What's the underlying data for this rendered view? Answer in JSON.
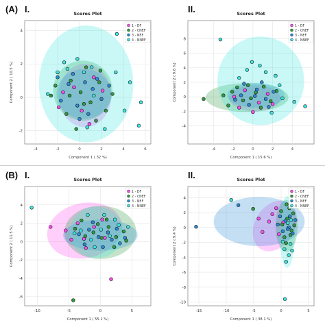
{
  "figure": {
    "section_a": "(A)",
    "section_b": "(B)",
    "panel_i": "I.",
    "panel_ii": "II."
  },
  "chart_data": [
    {
      "id": "A-I",
      "type": "scatter",
      "title": "Scores Plot",
      "xlabel": "Component 1 ( 32 %)",
      "ylabel": "Component 2 ( 10.5 %)",
      "xlim": [
        -5,
        6.5
      ],
      "ylim": [
        -2.8,
        4.6
      ],
      "xticks": [
        -4,
        -2,
        0,
        2,
        4,
        6
      ],
      "yticks": [
        -2,
        0,
        2,
        4
      ],
      "xtick_labels": [
        "-4",
        "-2",
        "0",
        "2",
        "4",
        "6"
      ],
      "ytick_labels": [
        "-2",
        "0",
        "2",
        "4"
      ],
      "legend": {
        "position": "top-right",
        "entries": [
          "1 - DF",
          "2 - CNEF",
          "3 - NEF",
          "4 - NNEF"
        ]
      },
      "series": [
        {
          "color": "#ff4ff0",
          "ellipse": {
            "cx": 0.5,
            "cy": 0.1,
            "rx": 2.4,
            "ry": 1.9,
            "angle": 0
          },
          "points": [
            [
              -1.5,
              0.3
            ],
            [
              0.2,
              -0.8
            ],
            [
              1.3,
              1.2
            ],
            [
              -0.5,
              0.6
            ],
            [
              0.9,
              -1.6
            ],
            [
              2.1,
              0.4
            ],
            [
              -1.9,
              -0.6
            ]
          ]
        },
        {
          "color": "#2f9c3f",
          "ellipse": {
            "cx": 0.3,
            "cy": 0.4,
            "rx": 2.7,
            "ry": 1.8,
            "angle": 0
          },
          "points": [
            [
              -2.2,
              0.7
            ],
            [
              -0.8,
              1.0
            ],
            [
              0.1,
              0.3
            ],
            [
              1.0,
              -0.3
            ],
            [
              1.8,
              0.9
            ],
            [
              -1.2,
              -1.0
            ],
            [
              0.6,
              1.8
            ],
            [
              2.4,
              -0.8
            ],
            [
              -0.3,
              -1.9
            ],
            [
              1.5,
              -1.4
            ],
            [
              -2.6,
              0.1
            ],
            [
              0.4,
              -0.4
            ],
            [
              1.9,
              1.6
            ],
            [
              -0.9,
              0.1
            ],
            [
              3.0,
              0.2
            ]
          ]
        },
        {
          "color": "#2b8bd8",
          "ellipse": {
            "cx": 0.4,
            "cy": 0.2,
            "rx": 2.5,
            "ry": 1.5,
            "angle": 0
          },
          "points": [
            [
              -1.0,
              0.8
            ],
            [
              0.5,
              0.9
            ],
            [
              -0.2,
              -0.5
            ],
            [
              1.2,
              0.5
            ],
            [
              -1.7,
              -0.2
            ],
            [
              0.8,
              -1.0
            ],
            [
              2.0,
              -0.1
            ],
            [
              -0.6,
              1.4
            ],
            [
              1.6,
              1.1
            ],
            [
              -2.0,
              1.2
            ],
            [
              0.0,
              -1.3
            ],
            [
              2.7,
              0.7
            ]
          ]
        },
        {
          "color": "#3de5e0",
          "ellipse": {
            "cx": 0.6,
            "cy": 0.8,
            "rx": 4.3,
            "ry": 3.5,
            "angle": 0
          },
          "points": [
            [
              -1.1,
              1.7
            ],
            [
              0.4,
              1.5
            ],
            [
              1.1,
              1.8
            ],
            [
              -2.0,
              1.5
            ],
            [
              3.4,
              3.8
            ],
            [
              4.1,
              -0.8
            ],
            [
              -2.9,
              0.2
            ],
            [
              2.3,
              -1.9
            ],
            [
              0.7,
              -1.8
            ],
            [
              -1.4,
              2.1
            ],
            [
              3.3,
              1.5
            ],
            [
              4.6,
              0.9
            ],
            [
              5.4,
              -1.7
            ],
            [
              5.6,
              -0.3
            ],
            [
              1.3,
              0.1
            ],
            [
              -0.2,
              2.3
            ]
          ]
        }
      ]
    },
    {
      "id": "A-II",
      "type": "scatter",
      "title": "Scores Plot",
      "xlabel": "Component 1 ( 15.6 %)",
      "ylabel": "Component 2 ( 9.6 %)",
      "xlim": [
        -6.6,
        6.2
      ],
      "ylim": [
        -6.5,
        10.5
      ],
      "xticks": [
        -4,
        -2,
        0,
        2,
        4
      ],
      "yticks": [
        -4,
        -2,
        0,
        2,
        4,
        6,
        8
      ],
      "xtick_labels": [
        "-4",
        "-2",
        "0",
        "2",
        "4"
      ],
      "ytick_labels": [
        "-4",
        "-2",
        "0",
        "2",
        "4",
        "6",
        "8"
      ],
      "legend": {
        "position": "top-right",
        "entries": [
          "1 - DF",
          "2 - CNEF",
          "3 - NEF",
          "4 - NNEF"
        ]
      },
      "series": [
        {
          "color": "#ff4ff0",
          "ellipse": {
            "cx": 0.2,
            "cy": -0.2,
            "rx": 2.6,
            "ry": 1.8,
            "angle": 0
          },
          "points": [
            [
              -1.4,
              -1.5
            ],
            [
              0.6,
              -0.8
            ],
            [
              1.5,
              0.4
            ],
            [
              -0.8,
              0.9
            ],
            [
              0.0,
              -2.1
            ],
            [
              2.0,
              -1.0
            ],
            [
              -1.9,
              0.0
            ]
          ]
        },
        {
          "color": "#2f9c3f",
          "ellipse": {
            "cx": -0.6,
            "cy": -0.1,
            "rx": 4.2,
            "ry": 2.0,
            "angle": 0
          },
          "points": [
            [
              -5.0,
              -0.3
            ],
            [
              -2.1,
              0.7
            ],
            [
              -1.0,
              -0.5
            ],
            [
              0.3,
              0.6
            ],
            [
              1.1,
              1.4
            ],
            [
              -0.5,
              1.6
            ],
            [
              1.8,
              -0.6
            ],
            [
              -2.5,
              -1.2
            ],
            [
              0.8,
              -1.5
            ],
            [
              -1.6,
              1.3
            ],
            [
              2.4,
              0.8
            ],
            [
              -0.2,
              -0.2
            ],
            [
              -3.0,
              0.2
            ]
          ]
        },
        {
          "color": "#2b8bd8",
          "ellipse": {
            "cx": 0.3,
            "cy": 0.2,
            "rx": 2.9,
            "ry": 1.7,
            "angle": 0
          },
          "points": [
            [
              -1.2,
              0.2
            ],
            [
              0.4,
              1.0
            ],
            [
              1.3,
              -0.3
            ],
            [
              -0.4,
              -1.1
            ],
            [
              0.9,
              2.0
            ],
            [
              2.1,
              0.7
            ],
            [
              -1.8,
              -0.4
            ],
            [
              0.2,
              0.1
            ],
            [
              1.6,
              -1.4
            ],
            [
              -0.9,
              1.8
            ]
          ]
        },
        {
          "color": "#3de5e0",
          "ellipse": {
            "cx": 0.8,
            "cy": 2.2,
            "rx": 4.4,
            "ry": 6.1,
            "angle": 0
          },
          "points": [
            [
              -3.3,
              7.9
            ],
            [
              0.7,
              4.3
            ],
            [
              1.3,
              3.4
            ],
            [
              -0.6,
              3.7
            ],
            [
              2.3,
              2.9
            ],
            [
              4.2,
              -0.7
            ],
            [
              5.3,
              -1.3
            ],
            [
              3.0,
              -0.2
            ],
            [
              1.9,
              -2.2
            ],
            [
              -0.1,
              4.8
            ],
            [
              2.7,
              1.6
            ],
            [
              -1.4,
              2.6
            ]
          ]
        }
      ]
    },
    {
      "id": "B-I",
      "type": "scatter",
      "title": "Scores Plot",
      "xlabel": "Component 1 ( 55.1 %)",
      "ylabel": "Component 2 ( 11.5 %)",
      "xlim": [
        -12,
        8
      ],
      "ylim": [
        -7,
        6
      ],
      "xticks": [
        -10,
        -5,
        0,
        5
      ],
      "yticks": [
        -6,
        -4,
        -2,
        0,
        2,
        4
      ],
      "xtick_labels": [
        "-10",
        "-5",
        "0",
        "5"
      ],
      "ytick_labels": [
        "-6",
        "-4",
        "-2",
        "0",
        "2",
        "4"
      ],
      "legend": {
        "position": "top-right",
        "entries": [
          "1 - DF",
          "2 - CNEF",
          "3 - NEF",
          "4 - NNEF"
        ]
      },
      "series": [
        {
          "color": "#ff4ff0",
          "ellipse": {
            "cx": -2.5,
            "cy": 1.2,
            "rx": 6.0,
            "ry": 3.0,
            "angle": -12
          },
          "points": [
            [
              -7.9,
              1.6
            ],
            [
              -5.5,
              1.2
            ],
            [
              -3.6,
              2.0
            ],
            [
              -2.6,
              0.3
            ],
            [
              -1.0,
              1.6
            ],
            [
              0.3,
              2.4
            ],
            [
              0.7,
              0.4
            ],
            [
              -2.3,
              -0.7
            ],
            [
              1.7,
              -4.1
            ],
            [
              -4.6,
              0.2
            ]
          ]
        },
        {
          "color": "#2f9c3f",
          "ellipse": {
            "cx": 0.0,
            "cy": 1.0,
            "rx": 5.7,
            "ry": 2.9,
            "angle": 0
          },
          "points": [
            [
              -4.0,
              1.4
            ],
            [
              -2.4,
              0.6
            ],
            [
              -1.1,
              1.0
            ],
            [
              0.2,
              0.4
            ],
            [
              1.3,
              1.6
            ],
            [
              2.5,
              0.5
            ],
            [
              3.7,
              1.1
            ],
            [
              -3.0,
              2.3
            ],
            [
              -0.4,
              1.9
            ],
            [
              1.0,
              2.4
            ],
            [
              -4.3,
              -6.4
            ],
            [
              4.1,
              0.1
            ],
            [
              2.2,
              -0.6
            ]
          ]
        },
        {
          "color": "#2b8bd8",
          "ellipse": {
            "cx": 0.0,
            "cy": 0.7,
            "rx": 5.9,
            "ry": 1.7,
            "angle": 0
          },
          "points": [
            [
              -3.4,
              0.8
            ],
            [
              -1.8,
              1.3
            ],
            [
              -0.3,
              0.5
            ],
            [
              1.2,
              1.0
            ],
            [
              2.6,
              1.4
            ],
            [
              3.9,
              0.4
            ],
            [
              -2.5,
              -0.3
            ],
            [
              0.4,
              -0.6
            ],
            [
              1.8,
              0.2
            ],
            [
              -1.2,
              2.1
            ],
            [
              3.1,
              -0.2
            ]
          ]
        },
        {
          "color": "#3de5e0",
          "ellipse": {
            "cx": -0.6,
            "cy": 1.0,
            "rx": 4.3,
            "ry": 2.8,
            "angle": 0
          },
          "points": [
            [
              -10.9,
              3.7
            ],
            [
              -3.1,
              1.2
            ],
            [
              -1.5,
              0.2
            ],
            [
              0.1,
              1.3
            ],
            [
              1.5,
              0.6
            ],
            [
              2.9,
              1.8
            ],
            [
              -2.0,
              2.9
            ],
            [
              0.6,
              2.9
            ],
            [
              -0.9,
              -0.6
            ],
            [
              2.3,
              2.4
            ],
            [
              4.4,
              1.6
            ],
            [
              -4.1,
              0.9
            ]
          ]
        }
      ]
    },
    {
      "id": "B-II",
      "type": "scatter",
      "title": "Scores Plot",
      "xlabel": "Component 1 ( 38.1 %)",
      "ylabel": "Component 2 ( 9.4 %)",
      "xlim": [
        -17,
        6
      ],
      "ylim": [
        -10.5,
        5.5
      ],
      "xticks": [
        -15,
        -10,
        -5,
        0,
        5
      ],
      "yticks": [
        -10,
        -8,
        -6,
        -4,
        -2,
        0,
        2,
        4
      ],
      "xtick_labels": [
        "-15",
        "-10",
        "-5",
        "0",
        "5"
      ],
      "ytick_labels": [
        "-10",
        "-8",
        "-6",
        "-4",
        "-2",
        "0",
        "2",
        "4"
      ],
      "legend": {
        "position": "top-right",
        "entries": [
          "1 - DF",
          "2 - CNEF",
          "3 - NEF",
          "4 - NNEF"
        ]
      },
      "series": [
        {
          "color": "#ff4ff0",
          "ellipse": {
            "cx": -1.2,
            "cy": 0.2,
            "rx": 3.6,
            "ry": 3.6,
            "angle": 30
          },
          "points": [
            [
              -3.4,
              -0.6
            ],
            [
              -1.6,
              1.8
            ],
            [
              -0.4,
              -0.9
            ],
            [
              0.4,
              0.7
            ],
            [
              -2.2,
              0.8
            ],
            [
              -0.9,
              2.6
            ],
            [
              -4.1,
              1.2
            ]
          ]
        },
        {
          "color": "#2f9c3f",
          "ellipse": {
            "cx": 1.0,
            "cy": 0.2,
            "rx": 2.0,
            "ry": 3.5,
            "angle": 0
          },
          "points": [
            [
              0.2,
              0.4
            ],
            [
              1.1,
              1.2
            ],
            [
              1.9,
              -0.4
            ],
            [
              0.6,
              -1.3
            ],
            [
              2.2,
              1.9
            ],
            [
              1.5,
              2.6
            ],
            [
              0.9,
              -2.1
            ],
            [
              2.4,
              0.3
            ],
            [
              0.0,
              2.2
            ],
            [
              1.7,
              -1.0
            ],
            [
              1.0,
              3.1
            ],
            [
              -5.1,
              2.5
            ]
          ]
        },
        {
          "color": "#2b8bd8",
          "ellipse": {
            "cx": -4.0,
            "cy": 0.8,
            "rx": 8.3,
            "ry": 3.3,
            "angle": 0
          },
          "points": [
            [
              -15.5,
              0.1
            ],
            [
              0.8,
              0.9
            ],
            [
              2.1,
              -0.8
            ],
            [
              1.4,
              0.0
            ],
            [
              -0.6,
              0.4
            ],
            [
              1.6,
              1.5
            ],
            [
              0.3,
              -0.5
            ],
            [
              2.6,
              1.0
            ],
            [
              -0.2,
              1.5
            ],
            [
              1.2,
              -0.2
            ],
            [
              -7.8,
              3.0
            ]
          ]
        },
        {
          "color": "#3de5e0",
          "ellipse": {
            "cx": 1.1,
            "cy": -0.6,
            "rx": 1.4,
            "ry": 4.8,
            "angle": 0
          },
          "points": [
            [
              -9.1,
              3.7
            ],
            [
              0.6,
              -2.9
            ],
            [
              1.4,
              -3.7
            ],
            [
              0.9,
              -4.6
            ],
            [
              1.7,
              -2.2
            ],
            [
              0.3,
              -1.9
            ],
            [
              2.0,
              -3.1
            ],
            [
              1.2,
              0.6
            ],
            [
              0.7,
              -9.6
            ],
            [
              1.8,
              1.0
            ]
          ]
        }
      ]
    }
  ]
}
